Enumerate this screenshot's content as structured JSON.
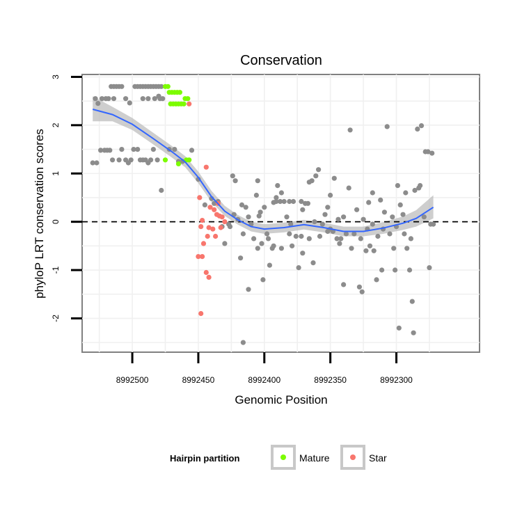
{
  "chart_data": {
    "type": "scatter",
    "title": "Conservation",
    "xlabel": "Genomic Position",
    "ylabel": "phyloP LRT conservation scores",
    "x_reversed": true,
    "xlim": [
      8992237,
      8992538
    ],
    "ylim": [
      -2.7,
      3.05
    ],
    "x_ticks": [
      8992500,
      8992450,
      8992400,
      8992350,
      8992300
    ],
    "y_ticks": [
      -2,
      -1,
      0,
      1,
      2,
      3
    ],
    "grid": true,
    "reference_line": {
      "y": 0,
      "style": "dashed"
    },
    "legend": {
      "title": "Hairpin partition",
      "placement": "bottom",
      "entries": [
        {
          "label": "Mature",
          "color": "#7CFC00"
        },
        {
          "label": "Star",
          "color": "#F8766D"
        }
      ]
    },
    "smooth_color": "#3366FF",
    "band_color": "#bdbdbd",
    "other_color": "#8c8c8c",
    "series": [
      {
        "name": "Mature",
        "color": "#7CFC00",
        "points": [
          [
            8992475,
            2.8
          ],
          [
            8992473,
            2.8
          ],
          [
            8992472,
            2.68
          ],
          [
            8992470,
            2.68
          ],
          [
            8992468,
            2.68
          ],
          [
            8992466,
            2.68
          ],
          [
            8992464,
            2.68
          ],
          [
            8992471,
            2.44
          ],
          [
            8992469,
            2.44
          ],
          [
            8992467,
            2.44
          ],
          [
            8992465,
            2.44
          ],
          [
            8992463,
            2.44
          ],
          [
            8992461,
            2.44
          ],
          [
            8992460,
            2.55
          ],
          [
            8992458,
            2.55
          ],
          [
            8992475,
            1.28
          ],
          [
            8992465,
            1.2
          ],
          [
            8992459,
            1.28
          ],
          [
            8992457,
            1.28
          ]
        ]
      },
      {
        "name": "Star",
        "color": "#F8766D",
        "points": [
          [
            8992457,
            2.44
          ],
          [
            8992444,
            1.13
          ],
          [
            8992449,
            0.5
          ],
          [
            8992441,
            0.3
          ],
          [
            8992438,
            0.25
          ],
          [
            8992436,
            0.15
          ],
          [
            8992434,
            0.12
          ],
          [
            8992432,
            0.1
          ],
          [
            8992447,
            0.03
          ],
          [
            8992435,
            0.38
          ],
          [
            8992430,
            0.0
          ],
          [
            8992448,
            -0.1
          ],
          [
            8992442,
            -0.12
          ],
          [
            8992439,
            -0.15
          ],
          [
            8992433,
            -0.12
          ],
          [
            8992446,
            -0.45
          ],
          [
            8992443,
            -0.3
          ],
          [
            8992437,
            -0.3
          ],
          [
            8992450,
            -0.72
          ],
          [
            8992447,
            -0.72
          ],
          [
            8992444,
            -1.05
          ],
          [
            8992442,
            -1.15
          ],
          [
            8992448,
            -1.9
          ]
        ]
      },
      {
        "name": "",
        "color": "#8c8c8c",
        "points": [
          [
            8992528,
            2.55
          ],
          [
            8992526,
            2.45
          ],
          [
            8992523,
            2.55
          ],
          [
            8992520,
            2.55
          ],
          [
            8992518,
            2.55
          ],
          [
            8992514,
            2.55
          ],
          [
            8992505,
            2.55
          ],
          [
            8992502,
            2.46
          ],
          [
            8992516,
            2.8
          ],
          [
            8992514,
            2.8
          ],
          [
            8992512,
            2.8
          ],
          [
            8992510,
            2.8
          ],
          [
            8992508,
            2.8
          ],
          [
            8992498,
            2.8
          ],
          [
            8992496,
            2.8
          ],
          [
            8992494,
            2.8
          ],
          [
            8992492,
            2.8
          ],
          [
            8992490,
            2.8
          ],
          [
            8992488,
            2.8
          ],
          [
            8992486,
            2.8
          ],
          [
            8992484,
            2.8
          ],
          [
            8992482,
            2.8
          ],
          [
            8992480,
            2.8
          ],
          [
            8992478,
            2.8
          ],
          [
            8992492,
            2.55
          ],
          [
            8992488,
            2.55
          ],
          [
            8992483,
            2.55
          ],
          [
            8992479,
            2.55
          ],
          [
            8992477,
            2.55
          ],
          [
            8992480,
            2.6
          ],
          [
            8992530,
            1.22
          ],
          [
            8992527,
            1.22
          ],
          [
            8992524,
            1.48
          ],
          [
            8992521,
            1.48
          ],
          [
            8992519,
            1.48
          ],
          [
            8992517,
            1.48
          ],
          [
            8992515,
            1.28
          ],
          [
            8992510,
            1.28
          ],
          [
            8992508,
            1.5
          ],
          [
            8992505,
            1.28
          ],
          [
            8992503,
            1.22
          ],
          [
            8992501,
            1.28
          ],
          [
            8992499,
            1.5
          ],
          [
            8992496,
            1.5
          ],
          [
            8992494,
            1.28
          ],
          [
            8992492,
            1.28
          ],
          [
            8992490,
            1.28
          ],
          [
            8992488,
            1.22
          ],
          [
            8992486,
            1.28
          ],
          [
            8992484,
            1.5
          ],
          [
            8992481,
            1.28
          ],
          [
            8992478,
            0.65
          ],
          [
            8992472,
            1.5
          ],
          [
            8992468,
            1.5
          ],
          [
            8992465,
            1.25
          ],
          [
            8992462,
            1.25
          ],
          [
            8992455,
            1.48
          ],
          [
            8992450,
            0.88
          ],
          [
            8992445,
            0.35
          ],
          [
            8992440,
            0.48
          ],
          [
            8992438,
            0.38
          ],
          [
            8992435,
            0.42
          ],
          [
            8992432,
            -0.1
          ],
          [
            8992430,
            -0.45
          ],
          [
            8992426,
            -0.1
          ],
          [
            8992424,
            0.95
          ],
          [
            8992422,
            0.85
          ],
          [
            8992420,
            0.05
          ],
          [
            8992418,
            -0.75
          ],
          [
            8992417,
            0.35
          ],
          [
            8992416,
            -0.25
          ],
          [
            8992414,
            0.3
          ],
          [
            8992412,
            0.1
          ],
          [
            8992410,
            -0.05
          ],
          [
            8992408,
            -0.35
          ],
          [
            8992406,
            0.55
          ],
          [
            8992405,
            -0.55
          ],
          [
            8992404,
            0.12
          ],
          [
            8992402,
            -0.45
          ],
          [
            8992400,
            0.3
          ],
          [
            8992398,
            -0.25
          ],
          [
            8992397,
            -0.35
          ],
          [
            8992396,
            -0.9
          ],
          [
            8992394,
            -0.55
          ],
          [
            8992393,
            0.4
          ],
          [
            8992391,
            0.42
          ],
          [
            8992390,
            0.75
          ],
          [
            8992388,
            0.42
          ],
          [
            8992387,
            -0.55
          ],
          [
            8992385,
            0.42
          ],
          [
            8992383,
            0.1
          ],
          [
            8992381,
            0.42
          ],
          [
            8992379,
            -0.5
          ],
          [
            8992378,
            0.42
          ],
          [
            8992376,
            -0.3
          ],
          [
            8992374,
            -0.95
          ],
          [
            8992372,
            0.42
          ],
          [
            8992371,
            -0.65
          ],
          [
            8992369,
            0.38
          ],
          [
            8992367,
            0.38
          ],
          [
            8992366,
            0.82
          ],
          [
            8992364,
            0.85
          ],
          [
            8992363,
            -0.85
          ],
          [
            8992361,
            0.95
          ],
          [
            8992359,
            1.08
          ],
          [
            8992358,
            -0.3
          ],
          [
            8992356,
            -0.05
          ],
          [
            8992354,
            0.15
          ],
          [
            8992352,
            0.3
          ],
          [
            8992350,
            -0.15
          ],
          [
            8992348,
            -0.2
          ],
          [
            8992347,
            0.9
          ],
          [
            8992345,
            -0.35
          ],
          [
            8992343,
            -0.45
          ],
          [
            8992342,
            -0.35
          ],
          [
            8992340,
            0.1
          ],
          [
            8992338,
            -0.25
          ],
          [
            8992336,
            0.7
          ],
          [
            8992335,
            1.9
          ],
          [
            8992334,
            -0.55
          ],
          [
            8992332,
            -0.25
          ],
          [
            8992330,
            0.25
          ],
          [
            8992328,
            -1.35
          ],
          [
            8992327,
            -0.35
          ],
          [
            8992326,
            -1.45
          ],
          [
            8992325,
            0.05
          ],
          [
            8992323,
            -0.6
          ],
          [
            8992322,
            -0.15
          ],
          [
            8992321,
            0.4
          ],
          [
            8992320,
            -0.5
          ],
          [
            8992318,
            -0.05
          ],
          [
            8992317,
            -0.6
          ],
          [
            8992315,
            -1.2
          ],
          [
            8992314,
            -0.3
          ],
          [
            8992312,
            0.45
          ],
          [
            8992311,
            -1.0
          ],
          [
            8992310,
            -0.15
          ],
          [
            8992309,
            0.2
          ],
          [
            8992307,
            1.97
          ],
          [
            8992305,
            -0.25
          ],
          [
            8992303,
            0.1
          ],
          [
            8992302,
            -0.55
          ],
          [
            8992301,
            -1.0
          ],
          [
            8992299,
            0.75
          ],
          [
            8992298,
            -2.2
          ],
          [
            8992297,
            0.35
          ],
          [
            8992295,
            0.15
          ],
          [
            8992294,
            -0.25
          ],
          [
            8992293,
            0.6
          ],
          [
            8992292,
            -0.55
          ],
          [
            8992290,
            -1.0
          ],
          [
            8992289,
            -0.35
          ],
          [
            8992288,
            -1.65
          ],
          [
            8992287,
            -2.3
          ],
          [
            8992286,
            0.65
          ],
          [
            8992284,
            1.92
          ],
          [
            8992283,
            0.7
          ],
          [
            8992282,
            0.75
          ],
          [
            8992281,
            1.99
          ],
          [
            8992279,
            0.1
          ],
          [
            8992278,
            1.45
          ],
          [
            8992276,
            1.45
          ],
          [
            8992275,
            -0.95
          ],
          [
            8992274,
            -0.05
          ],
          [
            8992273,
            1.42
          ],
          [
            8992272,
            -0.05
          ],
          [
            8992391,
            0.5
          ],
          [
            8992381,
            -0.25
          ],
          [
            8992372,
            -0.3
          ],
          [
            8992362,
            0.0
          ],
          [
            8992352,
            -0.2
          ],
          [
            8992344,
            0.05
          ],
          [
            8992427,
            -0.05
          ],
          [
            8992423,
            0.15
          ],
          [
            8992416,
            -2.5
          ],
          [
            8992412,
            -1.4
          ],
          [
            8992401,
            -1.2
          ],
          [
            8992387,
            0.6
          ],
          [
            8992371,
            0.25
          ],
          [
            8992366,
            -0.35
          ],
          [
            8992340,
            -1.3
          ],
          [
            8992318,
            0.6
          ],
          [
            8992300,
            -0.1
          ],
          [
            8992350,
            0.55
          ],
          [
            8992380,
            -0.05
          ],
          [
            8992393,
            -0.5
          ],
          [
            8992403,
            0.2
          ],
          [
            8992405,
            0.85
          ]
        ]
      }
    ],
    "smooth": [
      {
        "x": 8992530,
        "y": 2.33,
        "lo": 2.08,
        "hi": 2.6
      },
      {
        "x": 8992515,
        "y": 2.22,
        "lo": 2.08,
        "hi": 2.38
      },
      {
        "x": 8992500,
        "y": 2.02,
        "lo": 1.9,
        "hi": 2.15
      },
      {
        "x": 8992485,
        "y": 1.74,
        "lo": 1.62,
        "hi": 1.86
      },
      {
        "x": 8992470,
        "y": 1.45,
        "lo": 1.33,
        "hi": 1.57
      },
      {
        "x": 8992460,
        "y": 1.24,
        "lo": 1.13,
        "hi": 1.36
      },
      {
        "x": 8992450,
        "y": 0.92,
        "lo": 0.8,
        "hi": 1.04
      },
      {
        "x": 8992440,
        "y": 0.52,
        "lo": 0.41,
        "hi": 0.64
      },
      {
        "x": 8992430,
        "y": 0.22,
        "lo": 0.12,
        "hi": 0.33
      },
      {
        "x": 8992420,
        "y": 0.04,
        "lo": -0.06,
        "hi": 0.14
      },
      {
        "x": 8992410,
        "y": -0.1,
        "lo": -0.2,
        "hi": 0.0
      },
      {
        "x": 8992400,
        "y": -0.15,
        "lo": -0.25,
        "hi": -0.05
      },
      {
        "x": 8992385,
        "y": -0.12,
        "lo": -0.22,
        "hi": -0.02
      },
      {
        "x": 8992370,
        "y": -0.06,
        "lo": -0.16,
        "hi": 0.04
      },
      {
        "x": 8992355,
        "y": -0.12,
        "lo": -0.22,
        "hi": -0.02
      },
      {
        "x": 8992340,
        "y": -0.2,
        "lo": -0.3,
        "hi": -0.1
      },
      {
        "x": 8992325,
        "y": -0.2,
        "lo": -0.3,
        "hi": -0.1
      },
      {
        "x": 8992310,
        "y": -0.13,
        "lo": -0.25,
        "hi": -0.01
      },
      {
        "x": 8992295,
        "y": -0.03,
        "lo": -0.17,
        "hi": 0.11
      },
      {
        "x": 8992285,
        "y": 0.07,
        "lo": -0.1,
        "hi": 0.24
      },
      {
        "x": 8992272,
        "y": 0.3,
        "lo": 0.07,
        "hi": 0.55
      }
    ]
  }
}
